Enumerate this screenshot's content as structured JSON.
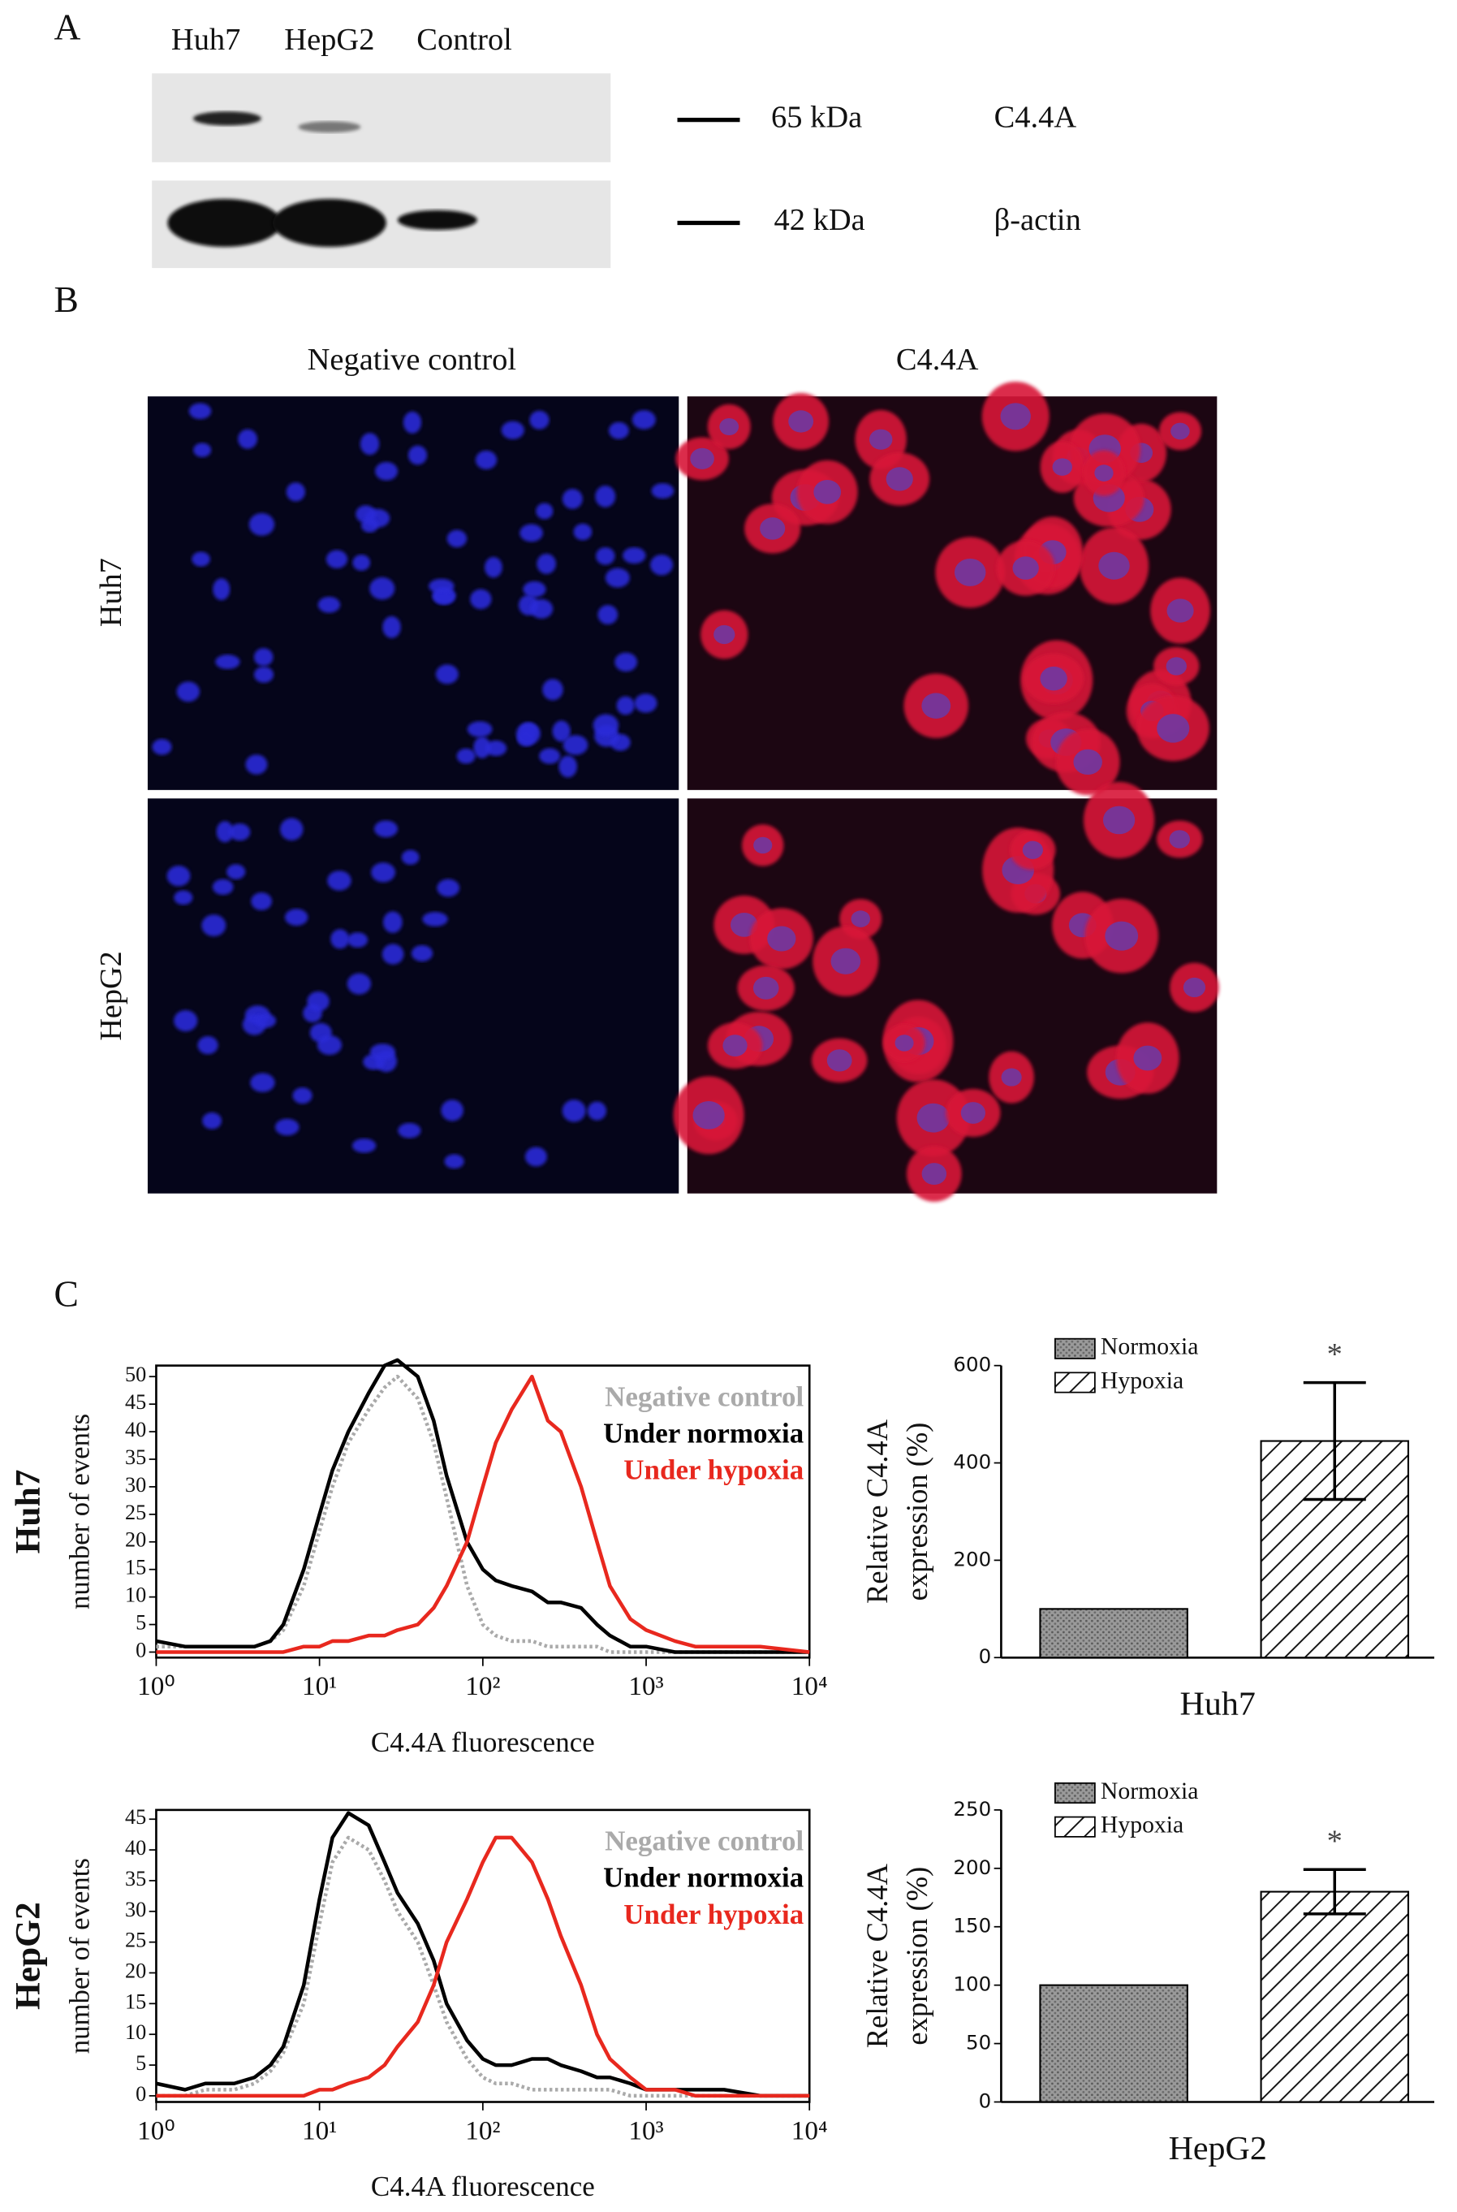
{
  "panel_labels": [
    "A",
    "B",
    "C"
  ],
  "western_blot": {
    "lanes": [
      "Huh7",
      "HepG2",
      "Control"
    ],
    "rows": [
      {
        "marker": "65 kDa",
        "protein": "C4.4A"
      },
      {
        "marker": "42 kDa",
        "protein": "β-actin"
      }
    ]
  },
  "immunofluorescence": {
    "columns": [
      "Negative control",
      "C4.4A"
    ],
    "rows": [
      "Huh7",
      "HepG2"
    ]
  },
  "chart_data": [
    {
      "type": "line",
      "row_label": "Huh7",
      "xlabel": "C4.4A fluorescence",
      "ylabel": "number of events",
      "log_x": true,
      "xlim": [
        1,
        10000
      ],
      "xticks": [
        {
          "value": 1,
          "label": "10⁰"
        },
        {
          "value": 10,
          "label": "10¹"
        },
        {
          "value": 100,
          "label": "10²"
        },
        {
          "value": 1000,
          "label": "10³"
        },
        {
          "value": 10000,
          "label": "10⁴"
        }
      ],
      "ylim": [
        -1,
        52
      ],
      "yticks": [
        0,
        5,
        10,
        15,
        20,
        25,
        30,
        35,
        40,
        45,
        50
      ],
      "legend": "upper right",
      "x": [
        1,
        1.5,
        2,
        3,
        4,
        5,
        6,
        8,
        10,
        12,
        15,
        20,
        25,
        30,
        40,
        50,
        60,
        80,
        100,
        120,
        150,
        200,
        250,
        300,
        400,
        500,
        600,
        800,
        1000,
        1500,
        2000,
        3000,
        5000,
        10000
      ],
      "series": [
        {
          "name": "Negative control",
          "color": "#aaaaaa",
          "line_style": "dotted",
          "values": [
            1,
            1,
            1,
            1,
            1,
            2,
            4,
            12,
            22,
            30,
            38,
            44,
            48,
            50,
            46,
            38,
            28,
            12,
            5,
            3,
            2,
            2,
            1,
            1,
            1,
            1,
            0,
            0,
            0,
            0,
            0,
            0,
            0,
            0
          ]
        },
        {
          "name": "Under normoxia",
          "color": "#000000",
          "line_style": "solid",
          "values": [
            2,
            1,
            1,
            1,
            1,
            2,
            5,
            15,
            25,
            33,
            40,
            47,
            52,
            53,
            50,
            42,
            32,
            20,
            15,
            13,
            12,
            11,
            9,
            9,
            8,
            5,
            3,
            1,
            1,
            0,
            0,
            0,
            0,
            0
          ]
        },
        {
          "name": "Under hypoxia",
          "color": "#e8281e",
          "line_style": "solid",
          "values": [
            0,
            0,
            0,
            0,
            0,
            0,
            0,
            1,
            1,
            2,
            2,
            3,
            3,
            4,
            5,
            8,
            12,
            20,
            30,
            38,
            44,
            50,
            42,
            40,
            30,
            20,
            12,
            6,
            4,
            2,
            1,
            1,
            1,
            0
          ]
        }
      ]
    },
    {
      "type": "bar",
      "xlabel": "Huh7",
      "ylabel": [
        "Relative C4.4A",
        "expression (%)"
      ],
      "ylim": [
        0,
        600
      ],
      "yticks": [
        0,
        200,
        400,
        600
      ],
      "legend": "upper left",
      "annotation": "*",
      "series": [
        {
          "name": "Normoxia",
          "color": "#8a8a8a",
          "pattern": "dots",
          "values": [
            100
          ]
        },
        {
          "name": "Hypoxia",
          "color": "#000000",
          "pattern": "hatch",
          "values": [
            445
          ],
          "error": [
            120
          ]
        }
      ]
    },
    {
      "type": "line",
      "row_label": "HepG2",
      "xlabel": "C4.4A fluorescence",
      "ylabel": "number of events",
      "log_x": true,
      "xlim": [
        1,
        10000
      ],
      "xticks": [
        {
          "value": 1,
          "label": "10⁰"
        },
        {
          "value": 10,
          "label": "10¹"
        },
        {
          "value": 100,
          "label": "10²"
        },
        {
          "value": 1000,
          "label": "10³"
        },
        {
          "value": 10000,
          "label": "10⁴"
        }
      ],
      "ylim": [
        -1,
        46.5
      ],
      "yticks": [
        0,
        5,
        10,
        15,
        20,
        25,
        30,
        35,
        40,
        45
      ],
      "legend": "upper right",
      "x": [
        1,
        1.5,
        2,
        3,
        4,
        5,
        6,
        8,
        10,
        12,
        15,
        20,
        25,
        30,
        40,
        50,
        60,
        80,
        100,
        120,
        150,
        200,
        250,
        300,
        400,
        500,
        600,
        800,
        1000,
        1500,
        2000,
        3000,
        5000,
        10000
      ],
      "series": [
        {
          "name": "Negative control",
          "color": "#aaaaaa",
          "line_style": "dotted",
          "values": [
            0,
            0,
            1,
            1,
            2,
            4,
            7,
            15,
            28,
            38,
            42,
            40,
            35,
            30,
            25,
            18,
            12,
            6,
            3,
            2,
            2,
            1,
            1,
            1,
            1,
            1,
            1,
            0,
            0,
            0,
            0,
            0,
            0,
            0
          ]
        },
        {
          "name": "Under normoxia",
          "color": "#000000",
          "line_style": "solid",
          "values": [
            2,
            1,
            2,
            2,
            3,
            5,
            8,
            18,
            32,
            42,
            46,
            44,
            38,
            33,
            28,
            22,
            15,
            9,
            6,
            5,
            5,
            6,
            6,
            5,
            4,
            3,
            3,
            2,
            1,
            1,
            1,
            1,
            0,
            0
          ]
        },
        {
          "name": "Under hypoxia",
          "color": "#e8281e",
          "line_style": "solid",
          "values": [
            0,
            0,
            0,
            0,
            0,
            0,
            0,
            0,
            1,
            1,
            2,
            3,
            5,
            8,
            12,
            18,
            25,
            32,
            38,
            42,
            42,
            38,
            32,
            26,
            18,
            10,
            6,
            3,
            1,
            1,
            0,
            0,
            0,
            0
          ]
        }
      ]
    },
    {
      "type": "bar",
      "xlabel": "HepG2",
      "ylabel": [
        "Relative C4.4A",
        "expression (%)"
      ],
      "ylim": [
        0,
        250
      ],
      "yticks": [
        0,
        50,
        100,
        150,
        200,
        250
      ],
      "legend": "upper left",
      "annotation": "*",
      "series": [
        {
          "name": "Normoxia",
          "color": "#8a8a8a",
          "pattern": "dots",
          "values": [
            100
          ]
        },
        {
          "name": "Hypoxia",
          "color": "#000000",
          "pattern": "hatch",
          "values": [
            180
          ],
          "error": [
            19
          ]
        }
      ]
    }
  ]
}
